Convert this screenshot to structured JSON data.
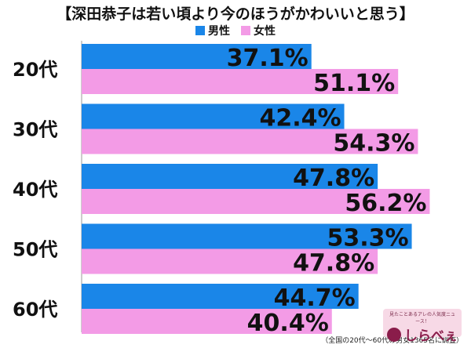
{
  "title": "【深田恭子は若い頃より今のほうがかわいいと思う】",
  "legend": [
    {
      "label": "男性",
      "color": "#1a86e8"
    },
    {
      "label": "女性",
      "color": "#f39be6"
    }
  ],
  "chart_data": {
    "type": "bar",
    "orientation": "horizontal",
    "title": "【深田恭子は若い頃より今のほうがかわいいと思う】",
    "categories": [
      "20代",
      "30代",
      "40代",
      "50代",
      "60代"
    ],
    "series": [
      {
        "name": "男性",
        "color": "#1a86e8",
        "values": [
          37.1,
          42.4,
          47.8,
          53.3,
          44.7
        ],
        "labels": [
          "37.1%",
          "42.4%",
          "47.8%",
          "53.3%",
          "44.7%"
        ]
      },
      {
        "name": "女性",
        "color": "#f39be6",
        "values": [
          51.1,
          54.3,
          56.2,
          47.8,
          40.4
        ],
        "labels": [
          "51.1%",
          "54.3%",
          "56.2%",
          "47.8%",
          "40.4%"
        ]
      }
    ],
    "xlim": [
      0,
      60
    ],
    "grid": false,
    "legend_position": "top-center"
  },
  "footnote": "（全国の20代～60代の男女1365名に調査）",
  "logo": {
    "tagline": "見たことあるアレの人気度ニュース！",
    "name": "しらべぇ"
  }
}
